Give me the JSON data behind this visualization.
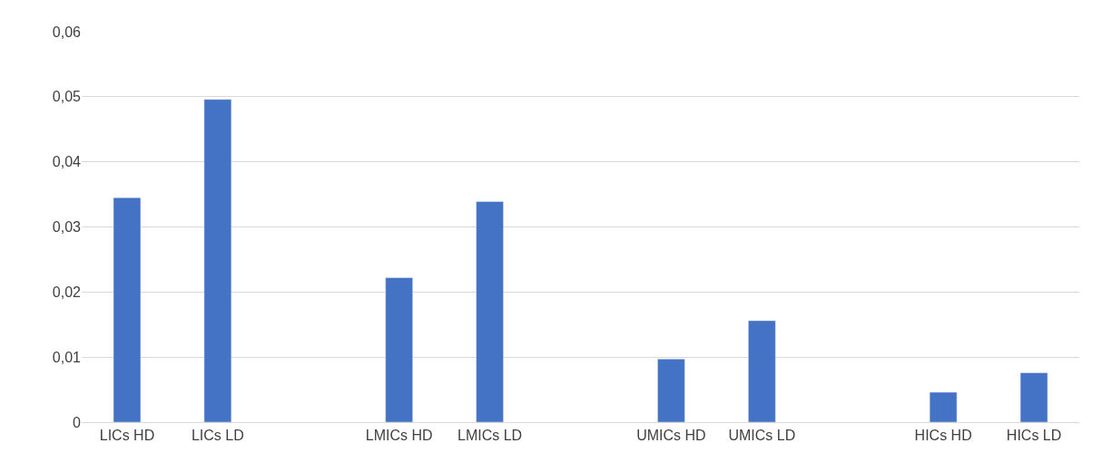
{
  "chart_data": {
    "type": "bar",
    "categories": [
      "LICs HD",
      "LICs LD",
      null,
      "LMICs HD",
      "LMICs LD",
      null,
      "UMICs HD",
      "UMICs LD",
      null,
      "HICs HD",
      "HICs LD"
    ],
    "values": [
      0.0345,
      0.0496,
      null,
      0.0222,
      0.0339,
      null,
      0.0097,
      0.0156,
      null,
      0.0046,
      0.0076
    ],
    "color": "#4472c4",
    "ylim": [
      0,
      0.06
    ],
    "yticks": [
      {
        "value": 0,
        "label": "0"
      },
      {
        "value": 0.01,
        "label": "0,01"
      },
      {
        "value": 0.02,
        "label": "0,02"
      },
      {
        "value": 0.03,
        "label": "0,03"
      },
      {
        "value": 0.04,
        "label": "0,04"
      },
      {
        "value": 0.05,
        "label": "0,05"
      },
      {
        "value": 0.06,
        "label": "0,06"
      }
    ],
    "grid": "y"
  }
}
